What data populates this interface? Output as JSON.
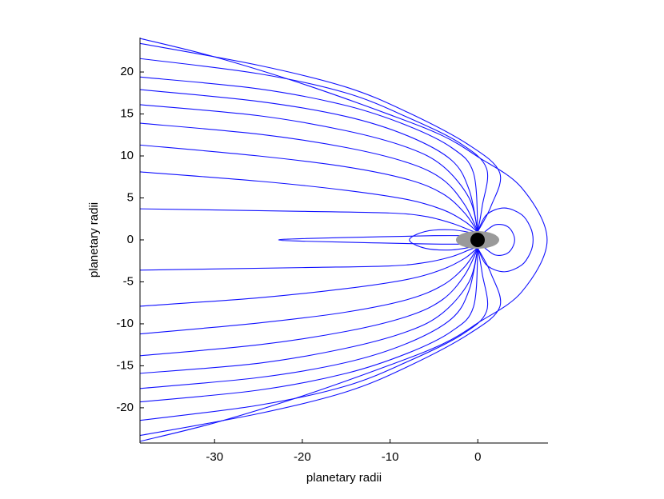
{
  "chart_data": {
    "type": "line",
    "xlabel": "planetary radii",
    "ylabel": "planetary radii",
    "color": "#1010ff",
    "xlim": [
      -38.5,
      8
    ],
    "ylim": [
      -24.2,
      24.1
    ],
    "xticks": [
      -30,
      -20,
      -10,
      0
    ],
    "yticks": [
      -20,
      -15,
      -10,
      -5,
      0,
      5,
      10,
      15,
      20
    ],
    "series": [
      {
        "x": [
          -38.5,
          -30,
          -20,
          -10,
          -4,
          0,
          5,
          7.9,
          5,
          0,
          -4,
          -10,
          -20,
          -30,
          -38.5
        ],
        "values": [
          24.0,
          21.8,
          18.6,
          14.9,
          12.4,
          9.9,
          6.2,
          0,
          -6.2,
          -9.9,
          -12.4,
          -14.9,
          -18.6,
          -21.8,
          -24.0
        ]
      },
      {
        "x": [
          -38.5,
          -20,
          -10,
          -6,
          -3,
          -1,
          0
        ],
        "values": [
          3.7,
          3.4,
          3.2,
          2.8,
          2.0,
          1.2,
          0.8
        ]
      },
      {
        "x": [
          -38.5,
          -25,
          -15,
          -8,
          -4,
          -1.5,
          0
        ],
        "values": [
          8.1,
          7.0,
          5.9,
          4.8,
          3.6,
          2.2,
          0.9
        ]
      },
      {
        "x": [
          -38.5,
          -25,
          -15,
          -8,
          -4,
          -1.5,
          0
        ],
        "values": [
          11.3,
          10.0,
          8.7,
          7.2,
          5.5,
          3.2,
          0.9
        ]
      },
      {
        "x": [
          -38.5,
          -25,
          -15,
          -8,
          -4,
          -1.5,
          0
        ],
        "values": [
          13.9,
          12.6,
          11.0,
          9.2,
          7.2,
          4.2,
          1.0
        ]
      },
      {
        "x": [
          -38.5,
          -25,
          -15,
          -8,
          -4,
          -1,
          0
        ],
        "values": [
          16.1,
          14.8,
          13.0,
          11.0,
          8.8,
          5.0,
          1.0
        ]
      },
      {
        "x": [
          -38.5,
          -25,
          -15,
          -8,
          -3,
          -1,
          0
        ],
        "values": [
          17.9,
          16.5,
          14.7,
          12.4,
          9.5,
          6.0,
          1.0
        ]
      },
      {
        "x": [
          -38.5,
          -25,
          -15,
          -8,
          -3,
          -0.5,
          0
        ],
        "values": [
          19.4,
          18.0,
          16.0,
          13.6,
          11.0,
          8.0,
          1.0
        ]
      },
      {
        "x": [
          -38.5,
          -25,
          -15,
          -8,
          -2,
          1,
          0.5,
          0
        ],
        "values": [
          21.6,
          19.8,
          17.5,
          14.6,
          11.5,
          8.5,
          4.0,
          1.0
        ]
      },
      {
        "x": [
          -38.5,
          -25,
          -15,
          -8,
          -1,
          2.5,
          1.5,
          0
        ],
        "values": [
          23.4,
          20.8,
          18.2,
          15.2,
          11.3,
          8.0,
          4.0,
          1.0
        ]
      },
      {
        "x": [
          -38.5,
          -20,
          -10,
          -6,
          -3,
          -1,
          0
        ],
        "values": [
          -3.6,
          -3.3,
          -3.1,
          -2.7,
          -2.0,
          -1.2,
          -0.8
        ]
      },
      {
        "x": [
          -38.5,
          -25,
          -15,
          -8,
          -4,
          -1.5,
          0
        ],
        "values": [
          -7.9,
          -6.9,
          -5.8,
          -4.7,
          -3.5,
          -2.2,
          -0.9
        ]
      },
      {
        "x": [
          -38.5,
          -25,
          -15,
          -8,
          -4,
          -1.5,
          0
        ],
        "values": [
          -11.2,
          -9.9,
          -8.6,
          -7.1,
          -5.4,
          -3.2,
          -0.9
        ]
      },
      {
        "x": [
          -38.5,
          -25,
          -15,
          -8,
          -4,
          -1.5,
          0
        ],
        "values": [
          -13.8,
          -12.5,
          -10.9,
          -9.1,
          -7.1,
          -4.2,
          -1.0
        ]
      },
      {
        "x": [
          -38.5,
          -25,
          -15,
          -8,
          -4,
          -1,
          0
        ],
        "values": [
          -15.9,
          -14.7,
          -12.9,
          -10.9,
          -8.7,
          -5.0,
          -1.0
        ]
      },
      {
        "x": [
          -38.5,
          -25,
          -15,
          -8,
          -3,
          -1,
          0
        ],
        "values": [
          -17.7,
          -16.4,
          -14.6,
          -12.3,
          -9.4,
          -6.0,
          -1.0
        ]
      },
      {
        "x": [
          -38.5,
          -25,
          -15,
          -8,
          -3,
          -0.5,
          0
        ],
        "values": [
          -19.3,
          -17.9,
          -15.9,
          -13.5,
          -10.9,
          -8.0,
          -1.0
        ]
      },
      {
        "x": [
          -38.5,
          -25,
          -15,
          -8,
          -2,
          1,
          0.5,
          0
        ],
        "values": [
          -21.5,
          -19.7,
          -17.4,
          -14.5,
          -11.4,
          -8.5,
          -4.0,
          -1.0
        ]
      },
      {
        "x": [
          -38.5,
          -25,
          -15,
          -8,
          -1,
          2.5,
          1.5,
          0
        ],
        "values": [
          -23.3,
          -20.7,
          -18.1,
          -15.1,
          -11.2,
          -8.0,
          -4.0,
          -1.0
        ]
      },
      {
        "x": [
          0,
          1,
          3,
          5,
          6,
          6.3,
          6,
          5,
          3,
          1,
          0
        ],
        "values": [
          1.0,
          3.0,
          3.8,
          3.0,
          1.5,
          0,
          -1.5,
          -3.0,
          -3.8,
          -3.0,
          -1.0
        ]
      },
      {
        "x": [
          0.5,
          2,
          3.5,
          4.2,
          3.5,
          2,
          0.5
        ],
        "values": [
          0.7,
          1.8,
          1.5,
          0,
          -1.5,
          -1.8,
          -0.7
        ]
      },
      {
        "x": [
          -0.5,
          -3,
          -6,
          -7.8,
          -6,
          -3,
          -0.5
        ],
        "values": [
          0.8,
          1.2,
          1.0,
          0,
          -1.0,
          -1.2,
          -0.8
        ]
      },
      {
        "x": [
          -0.5,
          -5,
          -12,
          -20,
          -22.7,
          -20,
          -12,
          -5,
          -0.5
        ],
        "values": [
          0.5,
          0.5,
          0.35,
          0.15,
          0,
          -0.15,
          -0.35,
          -0.5,
          -0.5
        ]
      }
    ]
  }
}
